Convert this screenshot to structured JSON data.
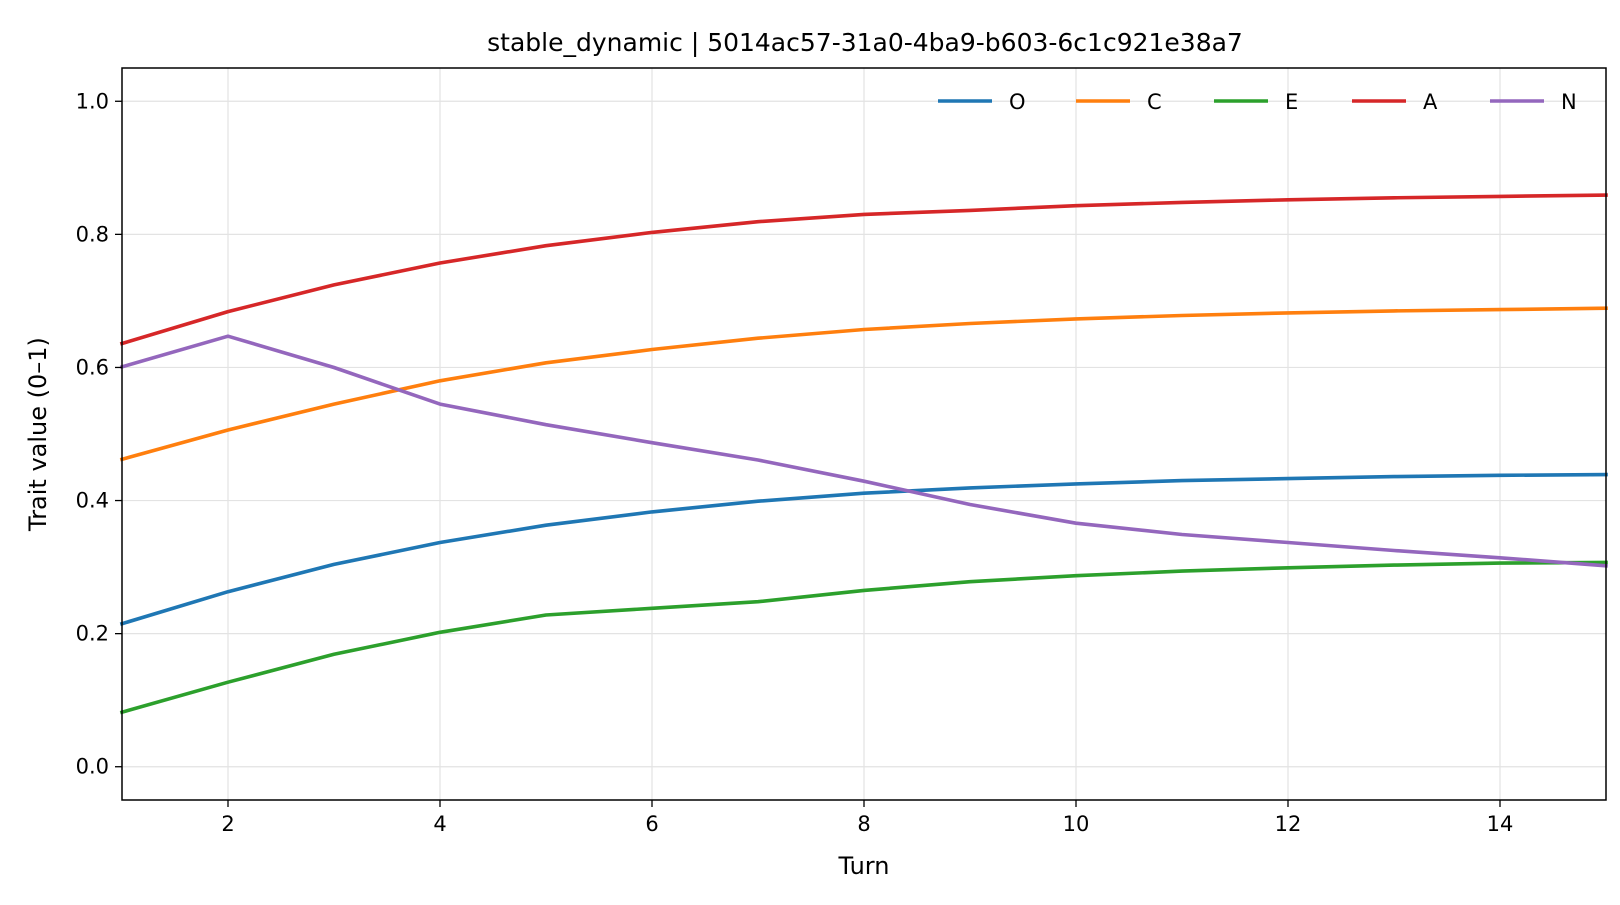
{
  "chart_data": {
    "type": "line",
    "title": "stable_dynamic | 5014ac57-31a0-4ba9-b603-6c1c921e38a7",
    "xlabel": "Turn",
    "ylabel": "Trait value (0–1)",
    "xlim": [
      1,
      15
    ],
    "ylim": [
      -0.05,
      1.05
    ],
    "x_ticks": [
      2,
      4,
      6,
      8,
      10,
      12,
      14
    ],
    "y_ticks": [
      0.0,
      0.2,
      0.4,
      0.6,
      0.8,
      1.0
    ],
    "grid": true,
    "legend_position": "top-right",
    "x": [
      1,
      2,
      3,
      4,
      5,
      6,
      7,
      8,
      9,
      10,
      11,
      12,
      13,
      14,
      15
    ],
    "series": [
      {
        "name": "O",
        "color": "#1f77b4",
        "values": [
          0.215,
          0.263,
          0.304,
          0.337,
          0.363,
          0.383,
          0.399,
          0.411,
          0.419,
          0.425,
          0.43,
          0.433,
          0.436,
          0.438,
          0.439
        ]
      },
      {
        "name": "C",
        "color": "#ff7f0e",
        "values": [
          0.462,
          0.506,
          0.545,
          0.58,
          0.607,
          0.627,
          0.644,
          0.657,
          0.666,
          0.673,
          0.678,
          0.682,
          0.685,
          0.687,
          0.689
        ]
      },
      {
        "name": "E",
        "color": "#2ca02c",
        "values": [
          0.082,
          0.127,
          0.169,
          0.202,
          0.228,
          0.238,
          0.248,
          0.265,
          0.278,
          0.287,
          0.294,
          0.299,
          0.303,
          0.306,
          0.307
        ]
      },
      {
        "name": "A",
        "color": "#d62728",
        "values": [
          0.636,
          0.684,
          0.724,
          0.757,
          0.783,
          0.803,
          0.819,
          0.83,
          0.836,
          0.843,
          0.848,
          0.852,
          0.855,
          0.857,
          0.859
        ]
      },
      {
        "name": "N",
        "color": "#9467bd",
        "values": [
          0.601,
          0.647,
          0.6,
          0.545,
          0.514,
          0.487,
          0.461,
          0.429,
          0.394,
          0.366,
          0.349,
          0.337,
          0.325,
          0.314,
          0.302
        ]
      }
    ]
  }
}
